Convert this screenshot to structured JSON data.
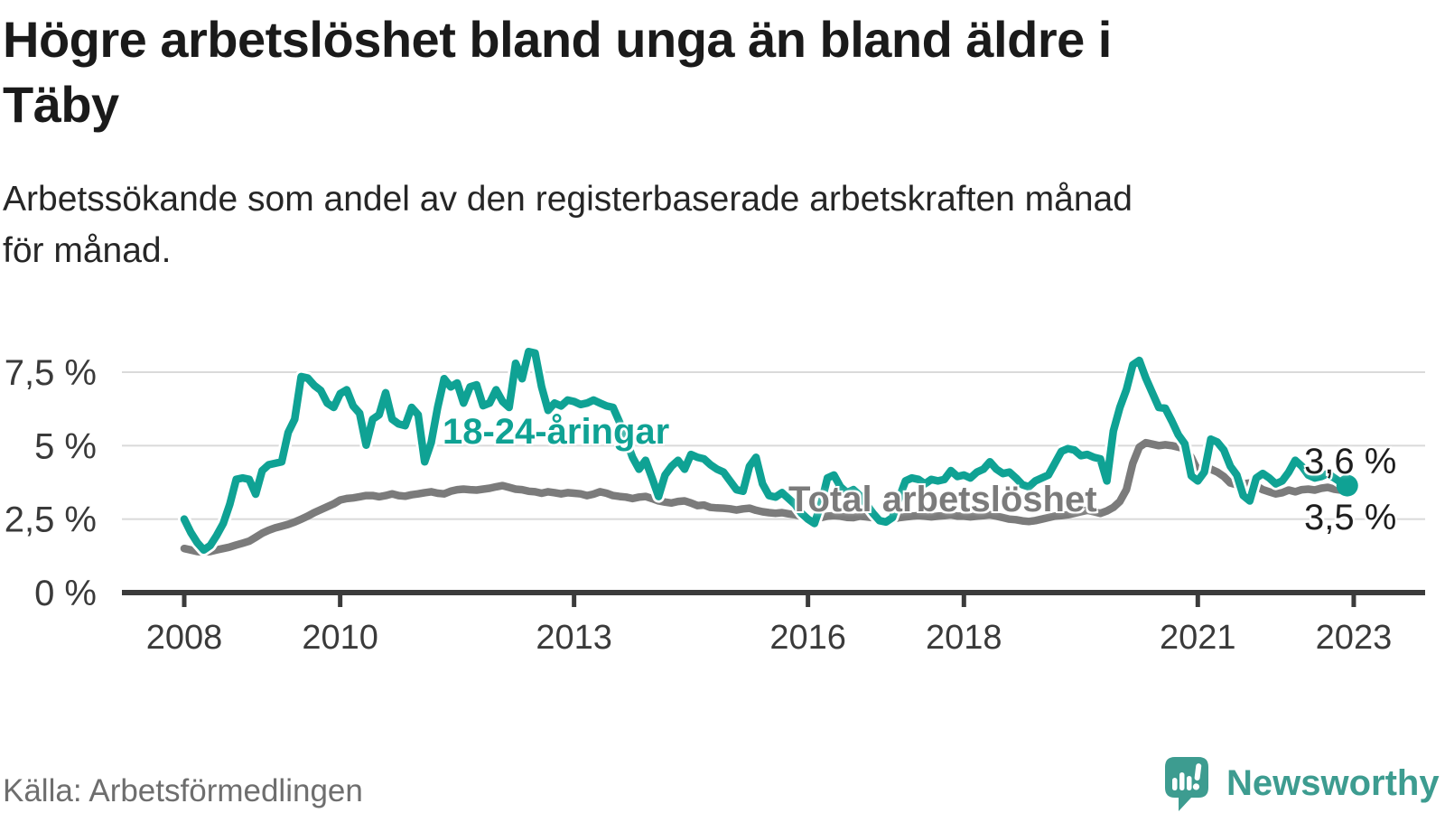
{
  "header": {
    "title_lines": [
      "Högre arbetslöshet bland unga än bland äldre i",
      "Täby"
    ],
    "subtitle_lines": [
      "Arbetssökande som andel av den registerbaserade arbetskraften månad",
      "för månad."
    ]
  },
  "footer": {
    "source": "Källa: Arbetsförmedlingen",
    "logo_text": "Newsworthy"
  },
  "colors": {
    "young_line": "#0FA294",
    "total_line": "#7B7B7B",
    "grid": "#DADADA",
    "axis": "#3B3B3B",
    "tick_text": "#3A3A3A",
    "value_text": "#1E1E1E",
    "logo_teal": "#3D9C90"
  },
  "chart_data": {
    "type": "line",
    "title": "Högre arbetslöshet bland unga än bland äldre i Täby",
    "subtitle": "Arbetssökande som andel av den registerbaserade arbetskraften månad för månad.",
    "x_unit": "month",
    "x_start_year": 2008,
    "x_end": "2022-12",
    "grid": true,
    "ylim": [
      0,
      8.6
    ],
    "yticks": [
      {
        "value": 0,
        "label": "0 %"
      },
      {
        "value": 2.5,
        "label": "2,5 %"
      },
      {
        "value": 5,
        "label": "5 %"
      },
      {
        "value": 7.5,
        "label": "7,5 %"
      }
    ],
    "xticks": [
      {
        "year": 2008,
        "label": "2008"
      },
      {
        "year": 2010,
        "label": "2010"
      },
      {
        "year": 2013,
        "label": "2013"
      },
      {
        "year": 2016,
        "label": "2016"
      },
      {
        "year": 2018,
        "label": "2018"
      },
      {
        "year": 2021,
        "label": "2021"
      },
      {
        "year": 2023,
        "label": "2023"
      }
    ],
    "series": [
      {
        "name": "18-24-åringar",
        "color": "#0FA294",
        "casing": true,
        "end_dot": true,
        "values": [
          2.5,
          2.05,
          1.7,
          1.45,
          1.6,
          1.95,
          2.35,
          3.0,
          3.85,
          3.9,
          3.85,
          3.35,
          4.15,
          4.35,
          4.4,
          4.45,
          5.45,
          5.9,
          7.35,
          7.3,
          7.05,
          6.88,
          6.45,
          6.3,
          6.77,
          6.9,
          6.35,
          6.1,
          5.02,
          5.9,
          6.05,
          6.8,
          5.9,
          5.74,
          5.68,
          6.3,
          6.05,
          4.45,
          5.1,
          6.3,
          7.28,
          7.0,
          7.13,
          6.45,
          7.0,
          7.07,
          6.36,
          6.45,
          6.9,
          6.5,
          6.3,
          7.8,
          7.28,
          8.2,
          8.15,
          7.0,
          6.2,
          6.45,
          6.35,
          6.55,
          6.5,
          6.4,
          6.45,
          6.55,
          6.45,
          6.35,
          6.3,
          5.8,
          5.2,
          4.6,
          4.2,
          4.5,
          3.9,
          3.27,
          4.0,
          4.3,
          4.5,
          4.2,
          4.7,
          4.6,
          4.55,
          4.35,
          4.2,
          4.1,
          3.8,
          3.5,
          3.45,
          4.3,
          4.6,
          3.7,
          3.3,
          3.25,
          3.4,
          3.2,
          3.0,
          2.7,
          2.5,
          2.35,
          3.0,
          3.9,
          4.0,
          3.6,
          3.4,
          3.5,
          3.3,
          3.0,
          2.7,
          2.45,
          2.4,
          2.55,
          3.2,
          3.8,
          3.9,
          3.85,
          3.7,
          3.85,
          3.8,
          3.85,
          4.15,
          3.95,
          4.0,
          3.9,
          4.1,
          4.2,
          4.45,
          4.2,
          4.05,
          4.1,
          3.9,
          3.67,
          3.6,
          3.8,
          3.9,
          4.0,
          4.4,
          4.8,
          4.9,
          4.85,
          4.66,
          4.7,
          4.6,
          4.55,
          3.8,
          5.5,
          6.3,
          6.9,
          7.75,
          7.9,
          7.3,
          6.8,
          6.3,
          6.27,
          5.84,
          5.37,
          5.06,
          3.97,
          3.8,
          4.1,
          5.22,
          5.12,
          4.85,
          4.3,
          4.0,
          3.3,
          3.12,
          3.9,
          4.05,
          3.9,
          3.7,
          3.8,
          4.1,
          4.5,
          4.3,
          4.0,
          3.9,
          3.95,
          4.05,
          3.9,
          3.75,
          3.64
        ]
      },
      {
        "name": "Total arbetslöshet",
        "color": "#7B7B7B",
        "casing": false,
        "end_dot": false,
        "values": [
          1.5,
          1.45,
          1.4,
          1.38,
          1.4,
          1.45,
          1.5,
          1.55,
          1.62,
          1.68,
          1.75,
          1.88,
          2.02,
          2.12,
          2.2,
          2.26,
          2.32,
          2.4,
          2.5,
          2.6,
          2.72,
          2.82,
          2.92,
          3.02,
          3.15,
          3.2,
          3.22,
          3.26,
          3.3,
          3.3,
          3.26,
          3.3,
          3.36,
          3.3,
          3.28,
          3.33,
          3.36,
          3.4,
          3.43,
          3.38,
          3.36,
          3.45,
          3.5,
          3.52,
          3.5,
          3.49,
          3.52,
          3.55,
          3.6,
          3.64,
          3.58,
          3.52,
          3.5,
          3.45,
          3.43,
          3.38,
          3.43,
          3.4,
          3.36,
          3.4,
          3.38,
          3.36,
          3.3,
          3.35,
          3.43,
          3.38,
          3.3,
          3.27,
          3.25,
          3.2,
          3.25,
          3.27,
          3.2,
          3.12,
          3.08,
          3.05,
          3.1,
          3.12,
          3.05,
          2.96,
          2.98,
          2.9,
          2.88,
          2.87,
          2.85,
          2.81,
          2.85,
          2.87,
          2.8,
          2.75,
          2.72,
          2.7,
          2.72,
          2.68,
          2.65,
          2.6,
          2.55,
          2.5,
          2.55,
          2.6,
          2.62,
          2.6,
          2.56,
          2.55,
          2.6,
          2.58,
          2.55,
          2.5,
          2.48,
          2.5,
          2.55,
          2.58,
          2.6,
          2.62,
          2.6,
          2.58,
          2.6,
          2.62,
          2.65,
          2.6,
          2.6,
          2.58,
          2.6,
          2.62,
          2.65,
          2.6,
          2.55,
          2.5,
          2.48,
          2.44,
          2.42,
          2.45,
          2.5,
          2.55,
          2.6,
          2.62,
          2.65,
          2.7,
          2.75,
          2.8,
          2.75,
          2.7,
          2.78,
          2.9,
          3.1,
          3.5,
          4.4,
          4.95,
          5.1,
          5.05,
          5.0,
          5.03,
          5.0,
          4.95,
          4.9,
          4.6,
          4.15,
          4.3,
          4.2,
          4.1,
          3.95,
          3.73,
          3.67,
          3.7,
          3.73,
          3.64,
          3.5,
          3.43,
          3.36,
          3.4,
          3.49,
          3.43,
          3.5,
          3.52,
          3.49,
          3.55,
          3.58,
          3.52,
          3.49,
          3.5
        ]
      }
    ],
    "series_labels": {
      "young": "18-24-åringar",
      "total": "Total arbetslöshet"
    },
    "end_labels": {
      "young": "3,6 %",
      "total": "3,5 %"
    },
    "legend_position": "inline"
  }
}
